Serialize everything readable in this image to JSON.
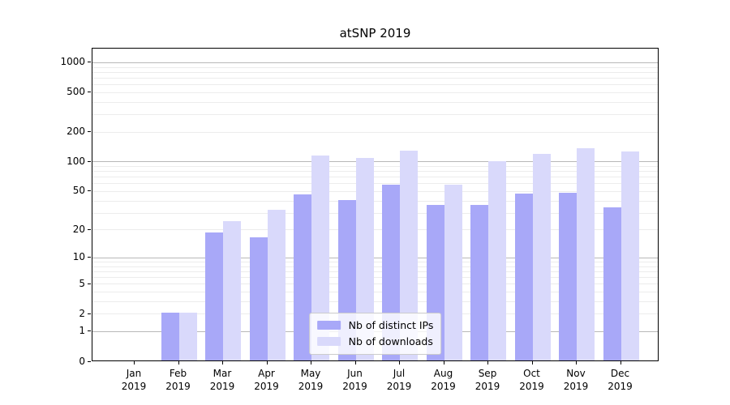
{
  "chart_data": {
    "type": "bar",
    "title": "atSNP 2019",
    "categories": [
      "Jan",
      "Feb",
      "Mar",
      "Apr",
      "May",
      "Jun",
      "Jul",
      "Aug",
      "Sep",
      "Oct",
      "Nov",
      "Dec"
    ],
    "year": "2019",
    "series": [
      {
        "name": "Nb of distinct IPs",
        "color": "#a8a8f8",
        "values": [
          0,
          2,
          18,
          16,
          45,
          39,
          57,
          35,
          35,
          46,
          47,
          33
        ]
      },
      {
        "name": "Nb of downloads",
        "color": "#d9d9fb",
        "values": [
          0,
          2,
          24,
          31,
          112,
          106,
          125,
          57,
          98,
          117,
          133,
          122
        ]
      }
    ],
    "y_ticks": [
      0,
      1,
      2,
      5,
      10,
      20,
      50,
      100,
      200,
      500,
      1000
    ],
    "y_scale": "log10(value+1), linear segment 0-1",
    "ylim": [
      0,
      1400
    ],
    "grid": {
      "values": [
        1,
        2,
        3,
        4,
        5,
        6,
        7,
        8,
        9,
        10,
        20,
        30,
        40,
        50,
        60,
        70,
        80,
        90,
        100,
        200,
        300,
        400,
        500,
        600,
        700,
        800,
        900,
        1000
      ],
      "major": [
        1,
        10,
        100,
        1000
      ]
    },
    "legend_position": "lower center"
  },
  "colors": {
    "background": "#ffffff",
    "axis": "#000000",
    "grid_major": "#b8b8b8",
    "grid_minor": "#ececec",
    "bar_distinct_ips": "#a8a8f8",
    "bar_downloads": "#d9d9fb"
  }
}
